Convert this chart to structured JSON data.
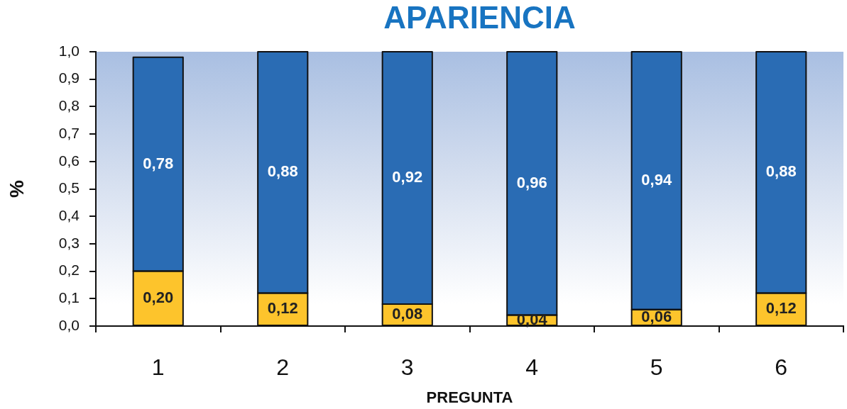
{
  "chart_data": {
    "type": "bar",
    "title": "APARIENCIA",
    "xlabel": "PREGUNTA",
    "ylabel": "%",
    "categories": [
      "1",
      "2",
      "3",
      "4",
      "5",
      "6"
    ],
    "stacked": true,
    "series": [
      {
        "color": "#fdc42c",
        "values": [
          0.2,
          0.12,
          0.08,
          0.04,
          0.06,
          0.12
        ],
        "value_labels": [
          "0,20",
          "0,12",
          "0,08",
          "0,04",
          "0,06",
          "0,12"
        ]
      },
      {
        "color": "#2a6cb4",
        "values": [
          0.78,
          0.88,
          0.92,
          0.96,
          0.94,
          0.88
        ],
        "value_labels": [
          "0,78",
          "0,88",
          "0,92",
          "0,96",
          "0,94",
          "0,88"
        ]
      }
    ],
    "ylim": [
      0,
      1
    ],
    "yticks": [
      {
        "value": 0,
        "label": "0,0"
      },
      {
        "value": 0.1,
        "label": "0,1"
      },
      {
        "value": 0.2,
        "label": "0,2"
      },
      {
        "value": 0.3,
        "label": "0,3"
      },
      {
        "value": 0.4,
        "label": "0,4"
      },
      {
        "value": 0.5,
        "label": "0,5"
      },
      {
        "value": 0.6,
        "label": "0,6"
      },
      {
        "value": 0.7,
        "label": "0,7"
      },
      {
        "value": 0.8,
        "label": "0,8"
      },
      {
        "value": 0.9,
        "label": "0,9"
      },
      {
        "value": 1,
        "label": "1,0"
      }
    ]
  }
}
